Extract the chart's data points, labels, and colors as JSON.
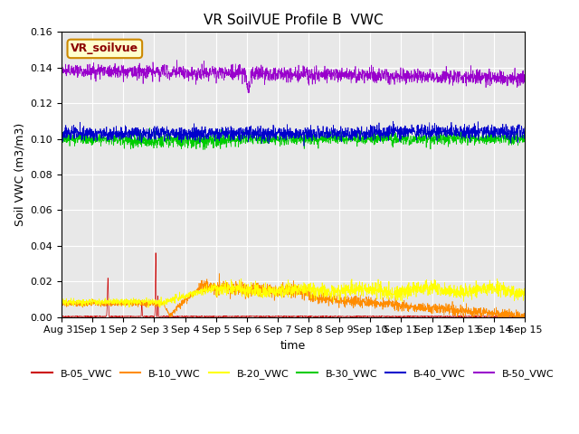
{
  "title": "VR SoilVUE Profile B  VWC",
  "xlabel": "time",
  "ylabel": "Soil VWC (m3/m3)",
  "ylim": [
    0.0,
    0.16
  ],
  "yticks": [
    0.0,
    0.02,
    0.04,
    0.06,
    0.08,
    0.1,
    0.12,
    0.14,
    0.16
  ],
  "xtick_labels": [
    "Aug 31",
    "Sep 1",
    "Sep 2",
    "Sep 3",
    "Sep 4",
    "Sep 5",
    "Sep 6",
    "Sep 7",
    "Sep 8",
    "Sep 9",
    "Sep 10",
    "Sep 11",
    "Sep 12",
    "Sep 13",
    "Sep 14",
    "Sep 15"
  ],
  "legend_label": "VR_soilvue",
  "series": {
    "B-05_VWC": {
      "color": "#cc0000"
    },
    "B-10_VWC": {
      "color": "#ff8c00"
    },
    "B-20_VWC": {
      "color": "#ffff00"
    },
    "B-30_VWC": {
      "color": "#00cc00"
    },
    "B-40_VWC": {
      "color": "#0000cc"
    },
    "B-50_VWC": {
      "color": "#9900cc"
    }
  },
  "bg_color": "#e8e8e8",
  "fig_bg_color": "#ffffff",
  "title_fontsize": 11,
  "axis_fontsize": 9,
  "tick_fontsize": 8,
  "legend_fontsize": 8,
  "linewidth": 0.5
}
